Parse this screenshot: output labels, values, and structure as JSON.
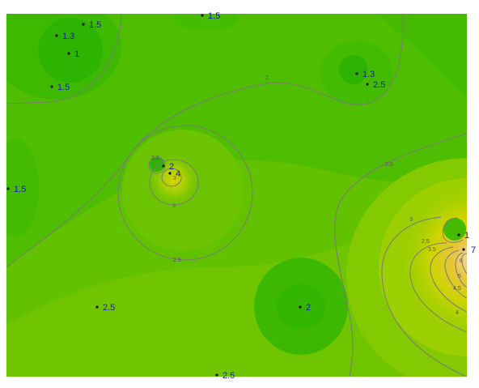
{
  "colors": {
    "background": "#ffffff",
    "field_green": "#4fbe00",
    "field_dark_green": "#2db400",
    "field_light_green": "#7cc800",
    "field_yellow_green": "#a8d200",
    "field_yellow": "#d9d700",
    "field_orange": "#e8c15a",
    "contour_line": "#7a7a7a",
    "point_marker": "#111111",
    "point_label": "#1a1aa8"
  },
  "data_points": [
    {
      "label": "1.5"
    },
    {
      "label": "1.5"
    },
    {
      "label": "1.3"
    },
    {
      "label": "1"
    },
    {
      "label": "1.5"
    },
    {
      "label": "1.3"
    },
    {
      "label": "2.5"
    },
    {
      "label": "2"
    },
    {
      "label": "4"
    },
    {
      "label": "1.5"
    },
    {
      "label": "1"
    },
    {
      "label": "7"
    },
    {
      "label": "2.5"
    },
    {
      "label": "2"
    },
    {
      "label": "2.5"
    }
  ],
  "contour_labels": [
    "2",
    "2.5",
    "2.5",
    "3",
    "3",
    "2.5",
    "3",
    "3.5",
    "4",
    "4.5",
    "5",
    "6",
    "2.5"
  ]
}
